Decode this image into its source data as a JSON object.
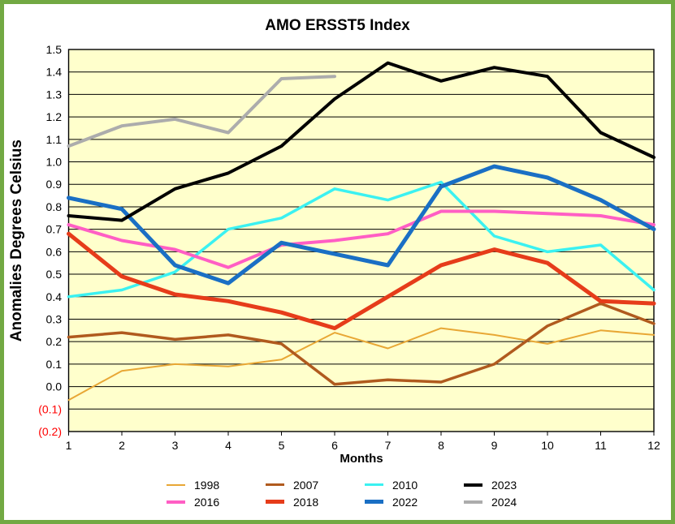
{
  "window": {
    "border_color": "#72A943",
    "background_color": "#FFFFFF"
  },
  "chart_data": {
    "type": "line",
    "title": "AMO ERSST5 Index",
    "xlabel": "Months",
    "ylabel": "Anomalies Degrees Celsius",
    "x": [
      1,
      2,
      3,
      4,
      5,
      6,
      7,
      8,
      9,
      10,
      11,
      12
    ],
    "ylim": [
      -0.2,
      1.5
    ],
    "grid": true,
    "legend_position": "bottom",
    "plot_bg": "#FFFFCC",
    "gridline_color": "#000000",
    "negative_tick_color": "#FF0000",
    "y_ticks": [
      {
        "label": "1.5",
        "value": 1.5,
        "color": "#000000"
      },
      {
        "label": "1.4",
        "value": 1.4,
        "color": "#000000"
      },
      {
        "label": "1.3",
        "value": 1.3,
        "color": "#000000"
      },
      {
        "label": "1.2",
        "value": 1.2,
        "color": "#000000"
      },
      {
        "label": "1.1",
        "value": 1.1,
        "color": "#000000"
      },
      {
        "label": "1.0",
        "value": 1.0,
        "color": "#000000"
      },
      {
        "label": "0.9",
        "value": 0.9,
        "color": "#000000"
      },
      {
        "label": "0.8",
        "value": 0.8,
        "color": "#000000"
      },
      {
        "label": "0.7",
        "value": 0.7,
        "color": "#000000"
      },
      {
        "label": "0.6",
        "value": 0.6,
        "color": "#000000"
      },
      {
        "label": "0.5",
        "value": 0.5,
        "color": "#000000"
      },
      {
        "label": "0.4",
        "value": 0.4,
        "color": "#000000"
      },
      {
        "label": "0.3",
        "value": 0.3,
        "color": "#000000"
      },
      {
        "label": "0.2",
        "value": 0.2,
        "color": "#000000"
      },
      {
        "label": "0.1",
        "value": 0.1,
        "color": "#000000"
      },
      {
        "label": "0.0",
        "value": 0.0,
        "color": "#000000"
      },
      {
        "label": "(0.1)",
        "value": -0.1,
        "color": "#FF0000"
      },
      {
        "label": "(0.2)",
        "value": -0.2,
        "color": "#FF0000"
      }
    ],
    "series": [
      {
        "name": "1998",
        "color": "#E8A735",
        "width": 2,
        "values": [
          -0.06,
          0.07,
          0.1,
          0.09,
          0.12,
          0.24,
          0.17,
          0.26,
          0.23,
          0.19,
          0.25,
          0.23
        ]
      },
      {
        "name": "2007",
        "color": "#B05A1E",
        "width": 3.5,
        "values": [
          0.22,
          0.24,
          0.21,
          0.23,
          0.19,
          0.01,
          0.03,
          0.02,
          0.1,
          0.27,
          0.37,
          0.28
        ]
      },
      {
        "name": "2010",
        "color": "#3BF1F1",
        "width": 3.5,
        "values": [
          0.4,
          0.43,
          0.51,
          0.7,
          0.75,
          0.88,
          0.83,
          0.91,
          0.67,
          0.6,
          0.63,
          0.43
        ]
      },
      {
        "name": "2016",
        "color": "#FF5EC4",
        "width": 4,
        "values": [
          0.72,
          0.65,
          0.61,
          0.53,
          0.63,
          0.65,
          0.68,
          0.78,
          0.78,
          0.77,
          0.76,
          0.72
        ]
      },
      {
        "name": "2018",
        "color": "#E63C1A",
        "width": 5,
        "values": [
          0.68,
          0.49,
          0.41,
          0.38,
          0.33,
          0.26,
          0.4,
          0.54,
          0.61,
          0.55,
          0.38,
          0.37
        ]
      },
      {
        "name": "2022",
        "color": "#1A6FC4",
        "width": 5,
        "values": [
          0.84,
          0.79,
          0.54,
          0.46,
          0.64,
          0.59,
          0.54,
          0.89,
          0.98,
          0.93,
          0.83,
          0.7
        ]
      },
      {
        "name": "2023",
        "color": "#000000",
        "width": 4,
        "values": [
          0.76,
          0.74,
          0.88,
          0.95,
          1.07,
          1.28,
          1.44,
          1.36,
          1.42,
          1.38,
          1.13,
          1.02
        ]
      },
      {
        "name": "2024",
        "color": "#ACACAC",
        "width": 4,
        "values": [
          1.07,
          1.16,
          1.19,
          1.13,
          1.37,
          1.38,
          null,
          null,
          null,
          null,
          null,
          null
        ]
      }
    ],
    "legend_order": [
      0,
      1,
      2,
      6,
      3,
      4,
      5,
      7
    ]
  }
}
